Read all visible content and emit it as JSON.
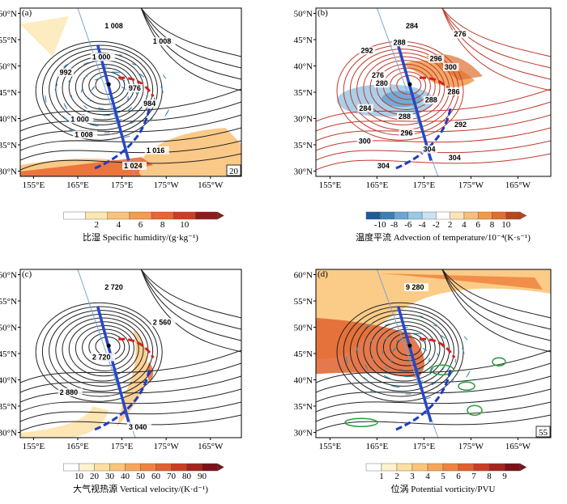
{
  "chart_data": [
    {
      "type": "contour",
      "panel": "(a)",
      "lat_ticks": [
        "60°N",
        "55°N",
        "50°N",
        "45°N",
        "40°N",
        "35°N",
        "30°N"
      ],
      "lon_ticks": [
        "155°E",
        "165°E",
        "175°E",
        "175°W",
        "165°W"
      ],
      "contour_labels": [
        "1 008",
        "1 008",
        "1 000",
        "992",
        "976",
        "984",
        "1 000",
        "1 008",
        "1 016",
        "1 024"
      ],
      "vector_ref": "20",
      "colorbar_ticks": [
        "2",
        "4",
        "6",
        "8",
        "10"
      ],
      "colorbar_title": "比湿 Specific humidity/(g·kg⁻¹)",
      "colorbar_colors": [
        "#ffffff",
        "#fde7b0",
        "#fbc37a",
        "#f59a4e",
        "#e8662f",
        "#c93f22",
        "#8e1b1b"
      ]
    },
    {
      "type": "contour",
      "panel": "(b)",
      "lat_ticks": [
        "50°N",
        "45°N",
        "40°N",
        "35°N",
        "30°N"
      ],
      "lon_ticks": [
        "155°E",
        "165°E",
        "175°E",
        "175°W",
        "165°W"
      ],
      "contour_labels": [
        "284",
        "276",
        "288",
        "292",
        "296",
        "300",
        "276",
        "280",
        "286",
        "288",
        "284",
        "288",
        "292",
        "296",
        "300",
        "304",
        "304",
        "304"
      ],
      "colorbar_ticks": [
        "-10",
        "-8",
        "-6",
        "-4",
        "-2",
        "2",
        "4",
        "6",
        "8",
        "10"
      ],
      "colorbar_title": "温度平流 Advection of temperature/10⁻⁴(K·s⁻¹)",
      "colorbar_colors": [
        "#1f5a99",
        "#3c7fb8",
        "#6aa6d3",
        "#9ac8e6",
        "#c9e3f1",
        "#ffffff",
        "#fde4b7",
        "#f9bf78",
        "#f09a4d",
        "#de6f2e",
        "#b8471d"
      ]
    },
    {
      "type": "contour",
      "panel": "(c)",
      "lat_ticks": [
        "60°N",
        "55°N",
        "50°N",
        "45°N",
        "40°N",
        "35°N",
        "30°N"
      ],
      "lon_ticks": [
        "155°E",
        "165°E",
        "175°E",
        "175°W",
        "165°W"
      ],
      "contour_labels": [
        "2 720",
        "2 560",
        "2 720",
        "2 880",
        "3 040"
      ],
      "colorbar_ticks": [
        "10",
        "20",
        "30",
        "40",
        "50",
        "60",
        "70",
        "80",
        "90"
      ],
      "colorbar_title": "大气视热源 Vertical velocity/(K·d⁻¹)",
      "colorbar_colors": [
        "#ffffff",
        "#fef3cc",
        "#fde0a0",
        "#fbc67a",
        "#f7a659",
        "#ef8440",
        "#e1622e",
        "#c93f22",
        "#a3251d",
        "#7a121a"
      ]
    },
    {
      "type": "contour",
      "panel": "(d)",
      "lat_ticks": [
        "60°N",
        "55°N",
        "50°N",
        "45°N",
        "40°N",
        "35°N",
        "30°N"
      ],
      "lon_ticks": [
        "155°E",
        "165°E",
        "175°E",
        "175°W",
        "165°W"
      ],
      "contour_labels": [
        "9 280"
      ],
      "vector_ref": "55",
      "colorbar_ticks": [
        "1",
        "2",
        "3",
        "4",
        "5",
        "6",
        "7",
        "8",
        "9"
      ],
      "colorbar_title": "位涡 Potential vorticity/PVU",
      "colorbar_colors": [
        "#ffffff",
        "#fef3cc",
        "#fde0a0",
        "#fbc67a",
        "#f7a659",
        "#ef8440",
        "#e1622e",
        "#c93f22",
        "#a3251d",
        "#7a121a"
      ]
    }
  ]
}
